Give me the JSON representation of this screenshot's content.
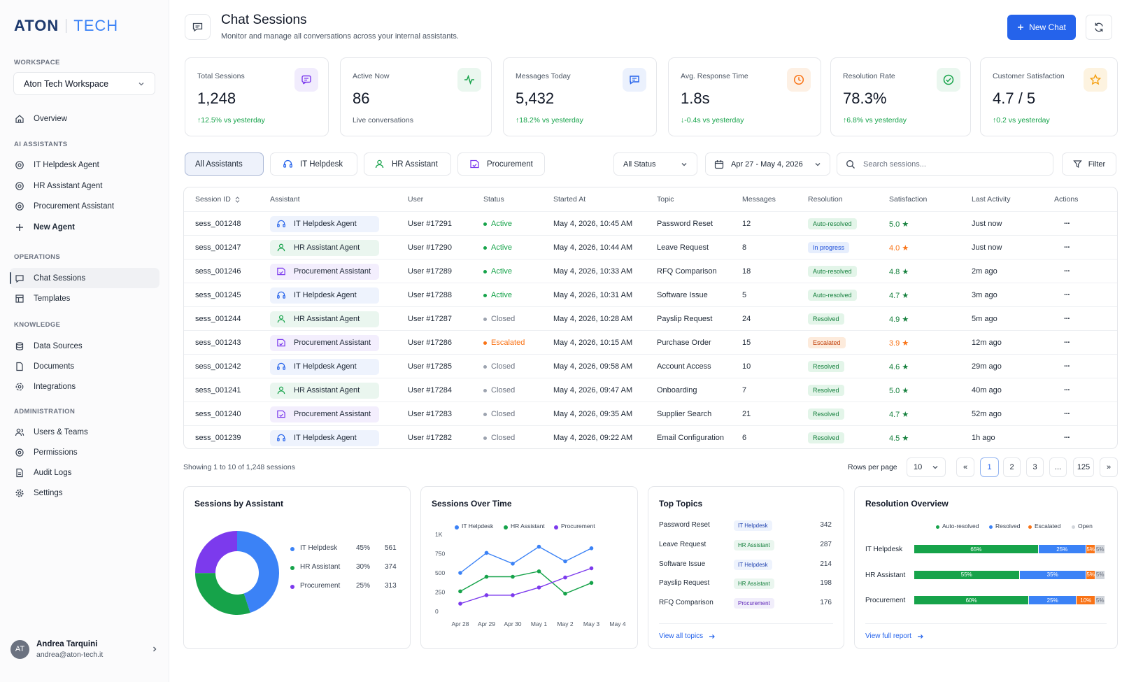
{
  "brand": {
    "name": "ATON",
    "suffix": "TECH"
  },
  "sidebar": {
    "workspace_label": "WORKSPACE",
    "workspace": "Aton Tech Workspace",
    "overview": "Overview",
    "ai_title": "AI ASSISTANTS",
    "ai_items": [
      "IT Helpdesk Agent",
      "HR Assistant Agent",
      "Procurement Assistant"
    ],
    "new_agent": "New Agent",
    "ops_title": "OPERATIONS",
    "ops_items": [
      "Chat Sessions",
      "Templates"
    ],
    "knowledge_title": "KNOWLEDGE",
    "knowledge_items": [
      "Data Sources",
      "Documents",
      "Integrations"
    ],
    "admin_title": "ADMINISTRATION",
    "admin_items": [
      "Users & Teams",
      "Permissions",
      "Audit Logs",
      "Settings"
    ],
    "user": {
      "initials": "AT",
      "name": "Andrea Tarquini",
      "email": "andrea@aton-tech.it"
    }
  },
  "header": {
    "title": "Chat Sessions",
    "subtitle": "Monitor and manage all conversations across your internal assistants.",
    "new_chat": "New Chat"
  },
  "stats": [
    {
      "label": "Total Sessions",
      "value": "1,248",
      "delta": "↑12.5% vs yesterday",
      "icon": "chat-bubble-icon",
      "color": "#7c3aed",
      "bg": "#f1ecfd",
      "delta_color": "#16a34a"
    },
    {
      "label": "Active Now",
      "value": "86",
      "delta": "Live conversations",
      "icon": "pulse-icon",
      "color": "#16a34a",
      "bg": "#eaf7ef",
      "delta_color": "#4b5563"
    },
    {
      "label": "Messages Today",
      "value": "5,432",
      "delta": "↑18.2% vs yesterday",
      "icon": "message-icon",
      "color": "#2563eb",
      "bg": "#ebf1fd",
      "delta_color": "#16a34a"
    },
    {
      "label": "Avg. Response Time",
      "value": "1.8s",
      "delta": "↓-0.4s vs yesterday",
      "icon": "clock-icon",
      "color": "#f97316",
      "bg": "#fdf0e4",
      "delta_color": "#16a34a"
    },
    {
      "label": "Resolution Rate",
      "value": "78.3%",
      "delta": "↑6.8% vs yesterday",
      "icon": "check-circle-icon",
      "color": "#16a34a",
      "bg": "#eaf7ef",
      "delta_color": "#16a34a"
    },
    {
      "label": "Customer Satisfaction",
      "value": "4.7 / 5",
      "delta": "↑0.2 vs yesterday",
      "icon": "star-icon",
      "color": "#f59e0b",
      "bg": "#fdf3e0",
      "delta_color": "#16a34a"
    }
  ],
  "filters": {
    "tabs": [
      "All Assistants",
      "IT Helpdesk",
      "HR Assistant",
      "Procurement"
    ],
    "status": "All Status",
    "date_range": "Apr 27 - May 4, 2026",
    "search_placeholder": "Search sessions...",
    "filter": "Filter"
  },
  "table": {
    "headers": [
      "Session ID",
      "Assistant",
      "User",
      "Status",
      "Started At",
      "Topic",
      "Messages",
      "Resolution",
      "Satisfaction",
      "Last Activity",
      "Actions"
    ],
    "rows": [
      {
        "id": "sess_001248",
        "assistant": "IT Helpdesk Agent",
        "a": "it",
        "user": "User #17291",
        "status": "Active",
        "started": "May 4, 2026, 10:45 AM",
        "topic": "Password Reset",
        "messages": "12",
        "resolution": "Auto-resolved",
        "sat": "5.0 ★",
        "last": "Just now"
      },
      {
        "id": "sess_001247",
        "assistant": "HR Assistant Agent",
        "a": "hr",
        "user": "User #17290",
        "status": "Active",
        "started": "May 4, 2026, 10:44 AM",
        "topic": "Leave Request",
        "messages": "8",
        "resolution": "In progress",
        "sat": "4.0 ★",
        "last": "Just now"
      },
      {
        "id": "sess_001246",
        "assistant": "Procurement Assistant",
        "a": "pr",
        "user": "User #17289",
        "status": "Active",
        "started": "May 4, 2026, 10:33 AM",
        "topic": "RFQ Comparison",
        "messages": "18",
        "resolution": "Auto-resolved",
        "sat": "4.8 ★",
        "last": "2m ago"
      },
      {
        "id": "sess_001245",
        "assistant": "IT Helpdesk Agent",
        "a": "it",
        "user": "User #17288",
        "status": "Active",
        "started": "May 4, 2026, 10:31 AM",
        "topic": "Software Issue",
        "messages": "5",
        "resolution": "Auto-resolved",
        "sat": "4.7 ★",
        "last": "3m ago"
      },
      {
        "id": "sess_001244",
        "assistant": "HR Assistant Agent",
        "a": "hr",
        "user": "User #17287",
        "status": "Closed",
        "started": "May 4, 2026, 10:28 AM",
        "topic": "Payslip Request",
        "messages": "24",
        "resolution": "Resolved",
        "sat": "4.9 ★",
        "last": "5m ago"
      },
      {
        "id": "sess_001243",
        "assistant": "Procurement Assistant",
        "a": "pr",
        "user": "User #17286",
        "status": "Escalated",
        "started": "May 4, 2026, 10:15 AM",
        "topic": "Purchase Order",
        "messages": "15",
        "resolution": "Escalated",
        "sat": "3.9 ★",
        "last": "12m ago"
      },
      {
        "id": "sess_001242",
        "assistant": "IT Helpdesk Agent",
        "a": "it",
        "user": "User #17285",
        "status": "Closed",
        "started": "May 4, 2026, 09:58 AM",
        "topic": "Account Access",
        "messages": "10",
        "resolution": "Resolved",
        "sat": "4.6 ★",
        "last": "29m ago"
      },
      {
        "id": "sess_001241",
        "assistant": "HR Assistant Agent",
        "a": "hr",
        "user": "User #17284",
        "status": "Closed",
        "started": "May 4, 2026, 09:47 AM",
        "topic": "Onboarding",
        "messages": "7",
        "resolution": "Resolved",
        "sat": "5.0 ★",
        "last": "40m ago"
      },
      {
        "id": "sess_001240",
        "assistant": "Procurement Assistant",
        "a": "pr",
        "user": "User #17283",
        "status": "Closed",
        "started": "May 4, 2026, 09:35 AM",
        "topic": "Supplier Search",
        "messages": "21",
        "resolution": "Resolved",
        "sat": "4.7 ★",
        "last": "52m ago"
      },
      {
        "id": "sess_001239",
        "assistant": "IT Helpdesk Agent",
        "a": "it",
        "user": "User #17282",
        "status": "Closed",
        "started": "May 4, 2026, 09:22 AM",
        "topic": "Email Configuration",
        "messages": "6",
        "resolution": "Resolved",
        "sat": "4.5 ★",
        "last": "1h ago"
      }
    ],
    "actions_glyph": "···"
  },
  "pagination": {
    "showing": "Showing 1 to 10 of 1,248 sessions",
    "rows_label": "Rows per page",
    "rows_value": "10",
    "pages": [
      "«",
      "1",
      "2",
      "3",
      "...",
      "125",
      "»"
    ],
    "current": "1"
  },
  "sessions_by_assistant": {
    "title": "Sessions by Assistant",
    "chart_data": {
      "type": "pie",
      "donut": true,
      "categories": [
        "IT Helpdesk",
        "HR Assistant",
        "Procurement"
      ],
      "percent_labels": [
        "45%",
        "30%",
        "25%"
      ],
      "values": [
        561,
        374,
        313
      ],
      "colors": [
        "#3b82f6",
        "#16a34a",
        "#7c3aed"
      ]
    }
  },
  "sessions_over_time": {
    "title": "Sessions Over Time",
    "chart_data": {
      "type": "line",
      "x": [
        "Apr 28",
        "Apr 29",
        "Apr 30",
        "May 1",
        "May 2",
        "May 3",
        "May 4"
      ],
      "yticks": [
        "0",
        "250",
        "500",
        "750",
        "1K"
      ],
      "ylim": [
        0,
        1000
      ],
      "series": [
        {
          "name": "IT Helpdesk",
          "color": "#3b82f6",
          "values": [
            500,
            760,
            620,
            840,
            650,
            820,
            null
          ]
        },
        {
          "name": "HR Assistant",
          "color": "#16a34a",
          "values": [
            260,
            450,
            450,
            520,
            230,
            370,
            null
          ]
        },
        {
          "name": "Procurement",
          "color": "#7c3aed",
          "values": [
            100,
            210,
            210,
            310,
            440,
            560,
            null
          ]
        }
      ]
    }
  },
  "top_topics": {
    "title": "Top Topics",
    "items": [
      {
        "topic": "Password Reset",
        "tag": "IT Helpdesk",
        "t": "it",
        "count": "342"
      },
      {
        "topic": "Leave Request",
        "tag": "HR Assistant",
        "t": "hr",
        "count": "287"
      },
      {
        "topic": "Software Issue",
        "tag": "IT Helpdesk",
        "t": "it",
        "count": "214"
      },
      {
        "topic": "Payslip Request",
        "tag": "HR Assistant",
        "t": "hr",
        "count": "198"
      },
      {
        "topic": "RFQ Comparison",
        "tag": "Procurement",
        "t": "pr",
        "count": "176"
      }
    ],
    "link": "View all topics"
  },
  "resolution_overview": {
    "title": "Resolution Overview",
    "legend": [
      {
        "name": "Auto-resolved",
        "color": "#16a34a"
      },
      {
        "name": "Resolved",
        "color": "#3b82f6"
      },
      {
        "name": "Escalated",
        "color": "#f97316"
      },
      {
        "name": "Open",
        "color": "#d1d5db"
      }
    ],
    "chart_data": {
      "type": "bar",
      "stacked": true,
      "orientation": "horizontal",
      "categories": [
        "IT Helpdesk",
        "HR Assistant",
        "Procurement"
      ],
      "series": [
        {
          "name": "Auto-resolved",
          "values": [
            65,
            55,
            60
          ],
          "labels": [
            "65%",
            "55%",
            "60%"
          ]
        },
        {
          "name": "Resolved",
          "values": [
            25,
            35,
            25
          ],
          "labels": [
            "25%",
            "35%",
            "25%"
          ]
        },
        {
          "name": "Escalated",
          "values": [
            5,
            5,
            10
          ],
          "labels": [
            "5%",
            "5%",
            "10%"
          ]
        },
        {
          "name": "Open",
          "values": [
            5,
            5,
            5
          ],
          "labels": [
            "5%",
            "5%",
            "5%"
          ]
        }
      ]
    },
    "link": "View full report"
  }
}
